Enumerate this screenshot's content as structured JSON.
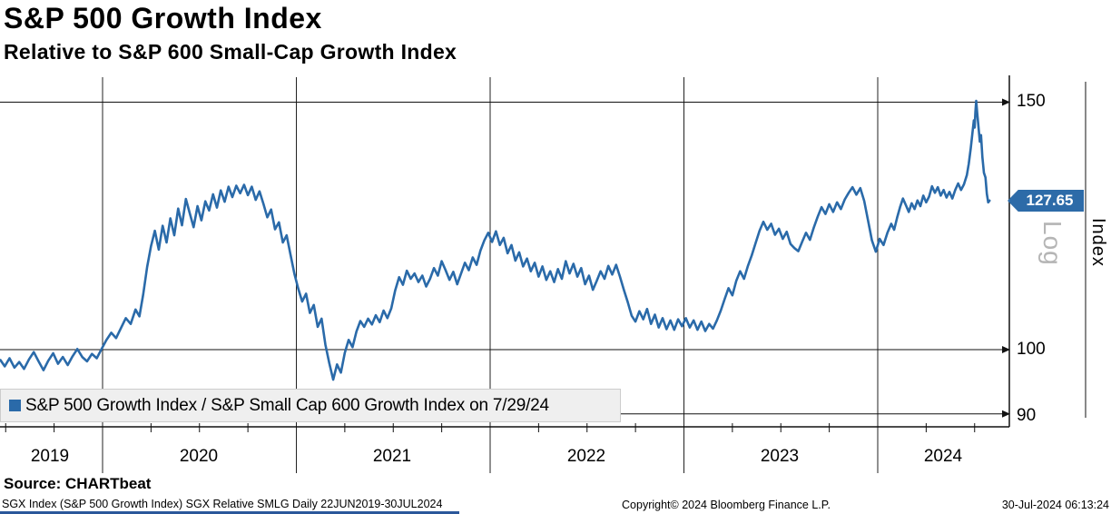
{
  "header": {
    "title": "S&P 500 Growth Index",
    "subtitle": "Relative to S&P 600 Small-Cap Growth Index"
  },
  "y_axis": {
    "scale_label": "Log",
    "axis_label": "Index",
    "badge_color": "#2d6ba8",
    "badge_border": "#17416f"
  },
  "legend": {
    "swatch_color": "#2a6aa9",
    "label": "S&P 500 Growth Index / S&P Small Cap 600 Growth Index on 7/29/24"
  },
  "footer": {
    "source": "Source: CHARTbeat",
    "meta": "SGX Index (S&P 500 Growth Index) SGX Relative SMLG  Daily 22JUN2019-30JUL2024",
    "copyright": "Copyright© 2024 Bloomberg Finance L.P.",
    "timestamp": "30-Jul-2024 06:13:24"
  },
  "chart_data": {
    "type": "line",
    "title": "S&P 500 Growth Index",
    "subtitle": "Relative to S&P 600 Small-Cap Growth Index",
    "xlabel": "",
    "ylabel": "Index",
    "y_scale": "log",
    "ylim": [
      88,
      153
    ],
    "x_range": [
      2019.47,
      2024.58
    ],
    "x_tick_labels": [
      "2019",
      "2020",
      "2021",
      "2022",
      "2023",
      "2024"
    ],
    "x_gridline_years": [
      2020,
      2021,
      2022,
      2023,
      2024
    ],
    "y_ticks": [
      150,
      100,
      90
    ],
    "grid": true,
    "legend_position": "bottom-left",
    "line_color": "#2a6aa9",
    "last_price": 127.65,
    "last_price_label": "127.65",
    "last_price_date": "7/29/24",
    "series": [
      {
        "name": "S&P 500 Growth Index / S&P Small Cap 600 Growth Index",
        "points": [
          [
            2019.47,
            98.3
          ],
          [
            2019.495,
            97.3
          ],
          [
            2019.52,
            98.6
          ],
          [
            2019.545,
            97.1
          ],
          [
            2019.57,
            98.0
          ],
          [
            2019.595,
            96.9
          ],
          [
            2019.62,
            98.4
          ],
          [
            2019.645,
            99.6
          ],
          [
            2019.67,
            98.1
          ],
          [
            2019.695,
            96.7
          ],
          [
            2019.72,
            98.2
          ],
          [
            2019.745,
            99.4
          ],
          [
            2019.77,
            97.7
          ],
          [
            2019.795,
            98.8
          ],
          [
            2019.82,
            97.5
          ],
          [
            2019.845,
            98.9
          ],
          [
            2019.87,
            100.1
          ],
          [
            2019.895,
            98.8
          ],
          [
            2019.92,
            98.1
          ],
          [
            2019.945,
            99.3
          ],
          [
            2019.97,
            98.6
          ],
          [
            2019.995,
            100.1
          ],
          [
            2020.02,
            101.6
          ],
          [
            2020.045,
            102.8
          ],
          [
            2020.07,
            101.9
          ],
          [
            2020.095,
            103.6
          ],
          [
            2020.12,
            105.3
          ],
          [
            2020.145,
            104.3
          ],
          [
            2020.17,
            106.8
          ],
          [
            2020.19,
            105.6
          ],
          [
            2020.21,
            109.5
          ],
          [
            2020.23,
            114.5
          ],
          [
            2020.25,
            118.5
          ],
          [
            2020.27,
            121.5
          ],
          [
            2020.29,
            117.8
          ],
          [
            2020.31,
            122.5
          ],
          [
            2020.33,
            119.2
          ],
          [
            2020.35,
            124.0
          ],
          [
            2020.37,
            120.6
          ],
          [
            2020.39,
            126.0
          ],
          [
            2020.41,
            122.6
          ],
          [
            2020.43,
            128.0
          ],
          [
            2020.45,
            125.0
          ],
          [
            2020.47,
            122.2
          ],
          [
            2020.49,
            126.5
          ],
          [
            2020.51,
            123.6
          ],
          [
            2020.53,
            127.5
          ],
          [
            2020.55,
            125.6
          ],
          [
            2020.57,
            129.0
          ],
          [
            2020.59,
            126.2
          ],
          [
            2020.61,
            129.8
          ],
          [
            2020.63,
            127.4
          ],
          [
            2020.65,
            130.6
          ],
          [
            2020.67,
            128.4
          ],
          [
            2020.69,
            130.8
          ],
          [
            2020.71,
            129.2
          ],
          [
            2020.73,
            131.0
          ],
          [
            2020.75,
            128.8
          ],
          [
            2020.77,
            130.6
          ],
          [
            2020.79,
            127.8
          ],
          [
            2020.81,
            129.6
          ],
          [
            2020.83,
            127.0
          ],
          [
            2020.85,
            124.2
          ],
          [
            2020.87,
            125.8
          ],
          [
            2020.89,
            121.8
          ],
          [
            2020.91,
            123.2
          ],
          [
            2020.93,
            119.2
          ],
          [
            2020.95,
            120.6
          ],
          [
            2020.97,
            116.8
          ],
          [
            2020.99,
            113.2
          ],
          [
            2021.01,
            110.5
          ],
          [
            2021.03,
            108.2
          ],
          [
            2021.05,
            109.6
          ],
          [
            2021.07,
            106.2
          ],
          [
            2021.09,
            107.6
          ],
          [
            2021.11,
            103.8
          ],
          [
            2021.13,
            105.2
          ],
          [
            2021.15,
            100.8
          ],
          [
            2021.17,
            97.8
          ],
          [
            2021.19,
            95.2
          ],
          [
            2021.21,
            97.6
          ],
          [
            2021.23,
            96.3
          ],
          [
            2021.25,
            99.5
          ],
          [
            2021.27,
            101.6
          ],
          [
            2021.29,
            100.4
          ],
          [
            2021.31,
            103.0
          ],
          [
            2021.33,
            104.8
          ],
          [
            2021.35,
            103.8
          ],
          [
            2021.37,
            105.2
          ],
          [
            2021.39,
            104.2
          ],
          [
            2021.41,
            105.8
          ],
          [
            2021.43,
            104.6
          ],
          [
            2021.45,
            106.6
          ],
          [
            2021.47,
            105.3
          ],
          [
            2021.49,
            107.0
          ],
          [
            2021.51,
            110.2
          ],
          [
            2021.53,
            112.6
          ],
          [
            2021.55,
            111.2
          ],
          [
            2021.57,
            113.8
          ],
          [
            2021.59,
            112.3
          ],
          [
            2021.61,
            113.3
          ],
          [
            2021.63,
            111.7
          ],
          [
            2021.65,
            112.9
          ],
          [
            2021.67,
            110.9
          ],
          [
            2021.69,
            112.3
          ],
          [
            2021.71,
            114.3
          ],
          [
            2021.73,
            112.9
          ],
          [
            2021.75,
            115.6
          ],
          [
            2021.77,
            113.9
          ],
          [
            2021.79,
            112.1
          ],
          [
            2021.81,
            113.6
          ],
          [
            2021.83,
            111.3
          ],
          [
            2021.85,
            113.3
          ],
          [
            2021.87,
            115.3
          ],
          [
            2021.89,
            113.9
          ],
          [
            2021.91,
            116.3
          ],
          [
            2021.93,
            114.9
          ],
          [
            2021.95,
            117.6
          ],
          [
            2021.97,
            119.6
          ],
          [
            2021.99,
            121.1
          ],
          [
            2022.01,
            119.3
          ],
          [
            2022.03,
            121.4
          ],
          [
            2022.05,
            118.7
          ],
          [
            2022.07,
            120.1
          ],
          [
            2022.09,
            117.1
          ],
          [
            2022.11,
            118.7
          ],
          [
            2022.13,
            115.7
          ],
          [
            2022.15,
            117.3
          ],
          [
            2022.17,
            114.6
          ],
          [
            2022.19,
            116.1
          ],
          [
            2022.21,
            113.7
          ],
          [
            2022.23,
            115.3
          ],
          [
            2022.25,
            112.7
          ],
          [
            2022.27,
            114.6
          ],
          [
            2022.29,
            112.1
          ],
          [
            2022.31,
            113.7
          ],
          [
            2022.33,
            111.7
          ],
          [
            2022.35,
            114.1
          ],
          [
            2022.37,
            112.3
          ],
          [
            2022.39,
            115.6
          ],
          [
            2022.41,
            113.3
          ],
          [
            2022.43,
            115.1
          ],
          [
            2022.45,
            112.7
          ],
          [
            2022.47,
            114.3
          ],
          [
            2022.49,
            111.3
          ],
          [
            2022.51,
            112.9
          ],
          [
            2022.53,
            110.3
          ],
          [
            2022.55,
            111.9
          ],
          [
            2022.57,
            113.7
          ],
          [
            2022.59,
            112.3
          ],
          [
            2022.61,
            114.7
          ],
          [
            2022.63,
            113.1
          ],
          [
            2022.65,
            114.9
          ],
          [
            2022.67,
            112.7
          ],
          [
            2022.69,
            110.3
          ],
          [
            2022.71,
            108.1
          ],
          [
            2022.73,
            105.7
          ],
          [
            2022.75,
            104.7
          ],
          [
            2022.77,
            106.5
          ],
          [
            2022.79,
            105.1
          ],
          [
            2022.81,
            106.9
          ],
          [
            2022.83,
            104.3
          ],
          [
            2022.85,
            105.9
          ],
          [
            2022.87,
            103.7
          ],
          [
            2022.89,
            105.3
          ],
          [
            2022.91,
            103.4
          ],
          [
            2022.93,
            104.9
          ],
          [
            2022.95,
            103.3
          ],
          [
            2022.97,
            105.1
          ],
          [
            2022.99,
            103.9
          ],
          [
            2023.01,
            105.3
          ],
          [
            2023.03,
            103.7
          ],
          [
            2023.05,
            104.9
          ],
          [
            2023.07,
            103.3
          ],
          [
            2023.09,
            104.7
          ],
          [
            2023.11,
            103.1
          ],
          [
            2023.13,
            104.3
          ],
          [
            2023.15,
            103.5
          ],
          [
            2023.17,
            104.9
          ],
          [
            2023.19,
            106.6
          ],
          [
            2023.21,
            108.6
          ],
          [
            2023.23,
            110.6
          ],
          [
            2023.25,
            109.3
          ],
          [
            2023.27,
            111.9
          ],
          [
            2023.29,
            113.7
          ],
          [
            2023.31,
            112.3
          ],
          [
            2023.33,
            114.7
          ],
          [
            2023.35,
            116.7
          ],
          [
            2023.37,
            119.1
          ],
          [
            2023.39,
            121.5
          ],
          [
            2023.41,
            123.3
          ],
          [
            2023.43,
            121.7
          ],
          [
            2023.45,
            122.9
          ],
          [
            2023.47,
            120.7
          ],
          [
            2023.49,
            121.9
          ],
          [
            2023.51,
            119.9
          ],
          [
            2023.53,
            121.3
          ],
          [
            2023.55,
            118.9
          ],
          [
            2023.57,
            118.1
          ],
          [
            2023.59,
            117.5
          ],
          [
            2023.61,
            119.3
          ],
          [
            2023.63,
            121.1
          ],
          [
            2023.65,
            119.7
          ],
          [
            2023.67,
            122.1
          ],
          [
            2023.69,
            124.3
          ],
          [
            2023.71,
            126.3
          ],
          [
            2023.73,
            124.9
          ],
          [
            2023.75,
            126.9
          ],
          [
            2023.77,
            125.3
          ],
          [
            2023.79,
            127.3
          ],
          [
            2023.81,
            125.9
          ],
          [
            2023.83,
            127.9
          ],
          [
            2023.85,
            129.3
          ],
          [
            2023.87,
            130.5
          ],
          [
            2023.89,
            128.9
          ],
          [
            2023.91,
            130.3
          ],
          [
            2023.93,
            127.6
          ],
          [
            2023.95,
            123.6
          ],
          [
            2023.97,
            119.6
          ],
          [
            2023.99,
            117.4
          ],
          [
            2024.01,
            119.9
          ],
          [
            2024.03,
            118.7
          ],
          [
            2024.05,
            121.1
          ],
          [
            2024.07,
            122.9
          ],
          [
            2024.085,
            121.7
          ],
          [
            2024.1,
            124.1
          ],
          [
            2024.115,
            126.3
          ],
          [
            2024.13,
            128.1
          ],
          [
            2024.145,
            126.7
          ],
          [
            2024.16,
            125.3
          ],
          [
            2024.175,
            127.1
          ],
          [
            2024.19,
            125.9
          ],
          [
            2024.205,
            127.7
          ],
          [
            2024.22,
            126.5
          ],
          [
            2024.235,
            128.7
          ],
          [
            2024.25,
            127.3
          ],
          [
            2024.265,
            128.5
          ],
          [
            2024.28,
            130.7
          ],
          [
            2024.295,
            129.3
          ],
          [
            2024.31,
            130.5
          ],
          [
            2024.325,
            128.7
          ],
          [
            2024.34,
            129.9
          ],
          [
            2024.355,
            128.3
          ],
          [
            2024.37,
            129.5
          ],
          [
            2024.385,
            128.1
          ],
          [
            2024.4,
            129.9
          ],
          [
            2024.415,
            131.3
          ],
          [
            2024.43,
            129.9
          ],
          [
            2024.445,
            131.1
          ],
          [
            2024.46,
            133.1
          ],
          [
            2024.47,
            135.6
          ],
          [
            2024.48,
            139.1
          ],
          [
            2024.49,
            143.1
          ],
          [
            2024.496,
            145.6
          ],
          [
            2024.5,
            143.9
          ],
          [
            2024.504,
            147.6
          ],
          [
            2024.508,
            150.3
          ],
          [
            2024.514,
            147.1
          ],
          [
            2024.52,
            144.1
          ],
          [
            2024.527,
            140.6
          ],
          [
            2024.533,
            142.1
          ],
          [
            2024.54,
            137.1
          ],
          [
            2024.548,
            133.6
          ],
          [
            2024.556,
            132.6
          ],
          [
            2024.563,
            129.1
          ],
          [
            2024.57,
            127.3
          ],
          [
            2024.577,
            127.65
          ]
        ]
      }
    ]
  }
}
